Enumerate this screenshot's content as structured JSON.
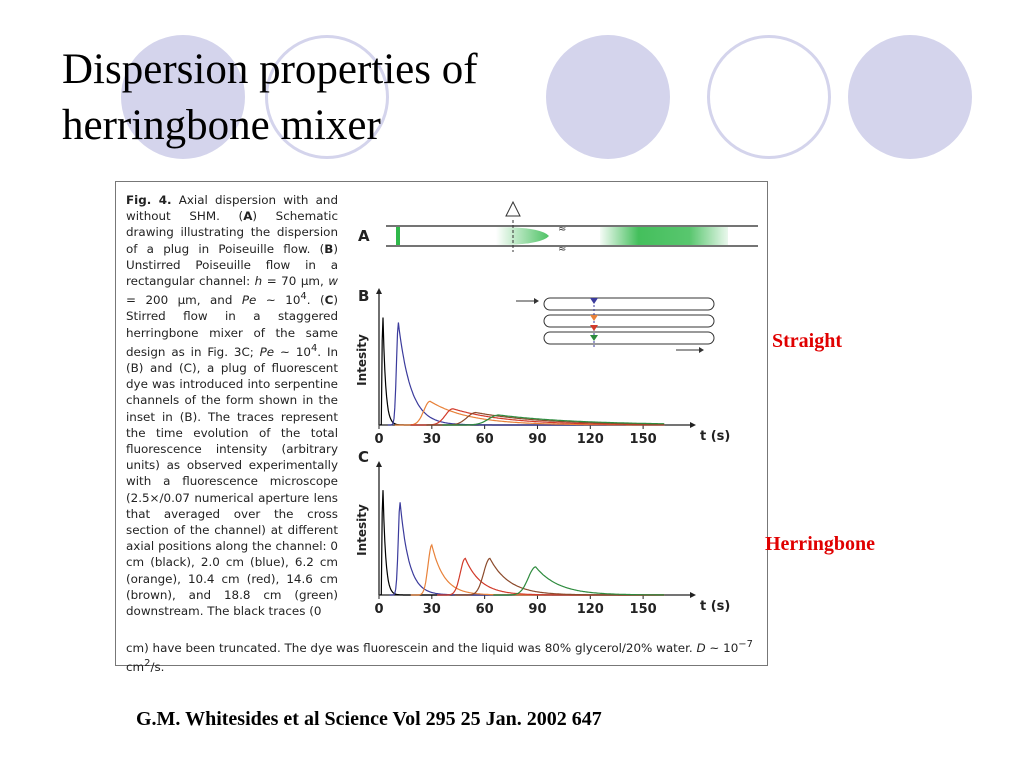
{
  "slide": {
    "title_line1": "Dispersion properties of",
    "title_line2": "herringbone mixer",
    "label_straight": "Straight",
    "label_herringbone": "Herringbone",
    "citation": "G.M. Whitesides et al Science Vol 295 25 Jan. 2002 647",
    "decor_color": "#d4d4ec"
  },
  "figure": {
    "caption_html": "<b>Fig. 4.</b> Axial dispersion with and without SHM. (<b>A</b>) Schematic drawing illustrating the dispersion of a plug in Poiseuille flow. (<b>B</b>) Unstirred Poiseuille flow in a rectangular channel: <i>h</i> = 70 μm, <i>w</i> = 200 μm, and <i>Pe</i> ~ 10<sup>4</sup>. (<b>C</b>) Stirred flow in a staggered herringbone mixer of the same design as in Fig. 3C; <i>Pe</i> ~ 10<sup>4</sup>. In (B) and (C), a plug of fluorescent dye was introduced into serpentine channels of the form shown in the inset in (B). The traces represent the time evolution of the total fluorescence intensity (arbitrary units) as observed experimentally with a fluorescence microscope (2.5×/0.07 numerical aperture lens that averaged over the cross section of the channel) at different axial positions along the channel: 0 cm (black), 2.0 cm (blue), 6.2 cm (orange), 10.4 cm (red), 14.6 cm (brown), and 18.8 cm (green) downstream. The black traces (0",
    "caption_tail_html": "cm) have been truncated. The dye was fluorescein and the liquid was 80% glycerol/20% water. <i>D</i> ~ 10<sup>−7</sup> cm<sup>2</sup>/s.",
    "panel_a_label": "A",
    "panel_b_label": "B",
    "panel_c_label": "C",
    "ylabel": "Intesity",
    "xlabel": "t (s)",
    "xticks": [
      "0",
      "30",
      "60",
      "90",
      "120",
      "150"
    ]
  },
  "chart_data": [
    {
      "type": "line",
      "panel": "B",
      "ylabel": "Intesity",
      "xlabel": "t (s)",
      "xticks": [
        0,
        30,
        60,
        90,
        120,
        150
      ],
      "series": [
        {
          "color": "#000000",
          "peak_t": 2,
          "peak": 1.05,
          "tail_rise": 0.3,
          "tail_decay": 1.5
        },
        {
          "color": "#3b3b9c",
          "peak_t": 11,
          "peak": 0.82,
          "tail_rise": 1.5,
          "tail_decay": 7
        },
        {
          "color": "#e8823a",
          "peak_t": 29,
          "peak": 0.19,
          "tail_rise": 5,
          "tail_decay": 22
        },
        {
          "color": "#d23a2a",
          "peak_t": 42,
          "peak": 0.13,
          "tail_rise": 6,
          "tail_decay": 30
        },
        {
          "color": "#8b4a2b",
          "peak_t": 55,
          "peak": 0.1,
          "tail_rise": 7,
          "tail_decay": 38
        },
        {
          "color": "#2e8b3e",
          "peak_t": 68,
          "peak": 0.08,
          "tail_rise": 8,
          "tail_decay": 45
        }
      ]
    },
    {
      "type": "line",
      "panel": "C",
      "ylabel": "Intesity",
      "xlabel": "t (s)",
      "xticks": [
        0,
        30,
        60,
        90,
        120,
        150
      ],
      "series": [
        {
          "color": "#000000",
          "peak_t": 2,
          "peak": 1.05,
          "tail_rise": 0.3,
          "tail_decay": 1.5
        },
        {
          "color": "#3b3b9c",
          "peak_t": 12,
          "peak": 0.76,
          "tail_rise": 1.5,
          "tail_decay": 5
        },
        {
          "color": "#e8823a",
          "peak_t": 30,
          "peak": 0.41,
          "tail_rise": 3,
          "tail_decay": 7
        },
        {
          "color": "#d23a2a",
          "peak_t": 49,
          "peak": 0.3,
          "tail_rise": 4,
          "tail_decay": 9
        },
        {
          "color": "#8b4a2b",
          "peak_t": 63,
          "peak": 0.3,
          "tail_rise": 5,
          "tail_decay": 11
        },
        {
          "color": "#2e8b3e",
          "peak_t": 89,
          "peak": 0.23,
          "tail_rise": 6,
          "tail_decay": 13
        }
      ]
    }
  ]
}
